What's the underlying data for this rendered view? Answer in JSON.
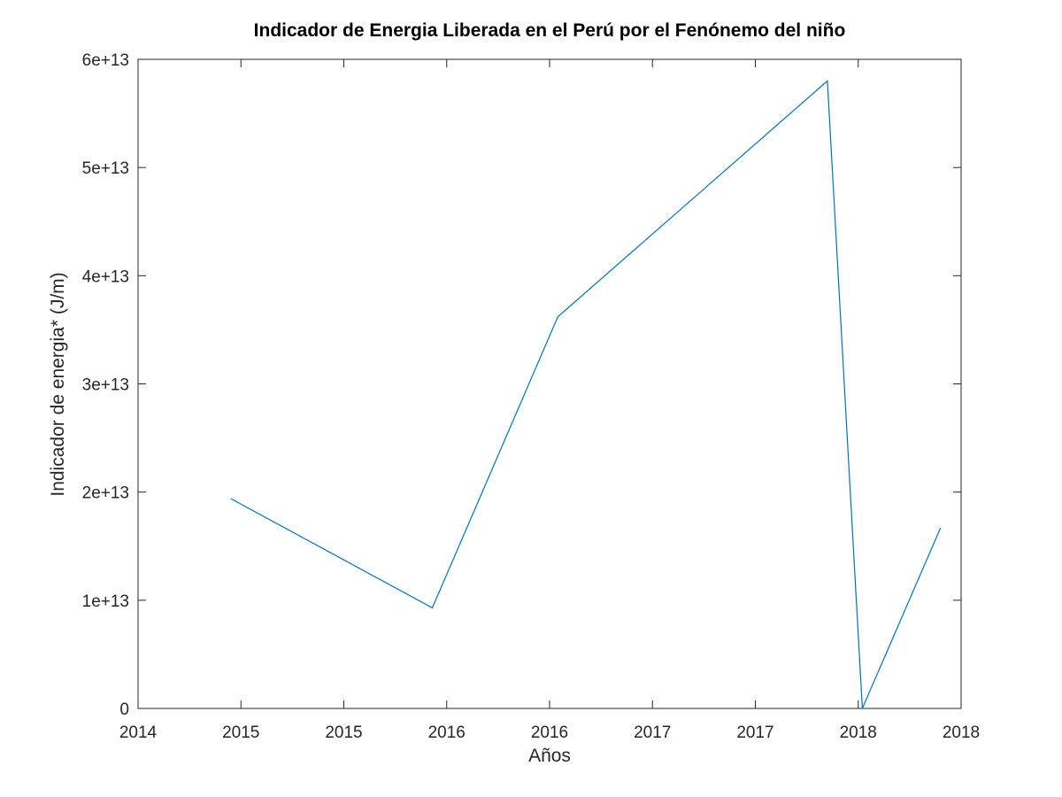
{
  "chart_data": {
    "type": "line",
    "title": "Indicador de Energia Liberada en el Perú por el Fenónemo del niño",
    "xlabel": "Años",
    "ylabel": "Indicador de energia* (J/m)",
    "xlim": [
      0,
      8
    ],
    "ylim": [
      0,
      60000000000000
    ],
    "x_ticks": [
      0,
      1,
      2,
      3,
      4,
      5,
      6,
      7,
      8
    ],
    "x_tick_labels": [
      "2014",
      "2015",
      "2015",
      "2016",
      "2016",
      "2017",
      "2017",
      "2018",
      "2018"
    ],
    "y_ticks": [
      0,
      10000000000000,
      20000000000000,
      30000000000000,
      40000000000000,
      50000000000000,
      60000000000000
    ],
    "y_tick_labels": [
      "0",
      "1e+13",
      "2e+13",
      "3e+13",
      "4e+13",
      "5e+13",
      "6e+13"
    ],
    "grid": false,
    "line_color": "#0072bd",
    "series": [
      {
        "x": [
          0.9,
          2.86,
          4.08,
          6.7,
          7.04,
          7.8
        ],
        "values": [
          19400000000000,
          9300000000000,
          36200000000000,
          58000000000000,
          0,
          16700000000000
        ]
      }
    ]
  }
}
